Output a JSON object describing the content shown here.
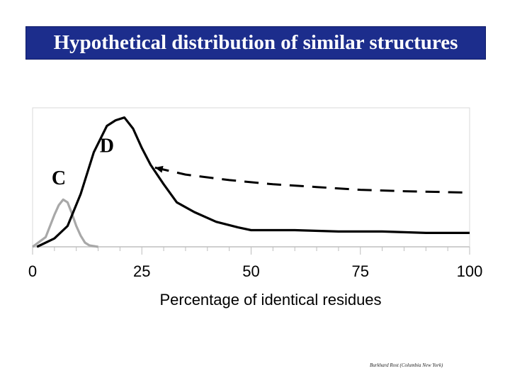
{
  "header": {
    "title": "Hypothetical distribution of similar structures"
  },
  "credit": "Burkhard Rost (Columbia New York)",
  "chart_data": {
    "type": "line",
    "title": "Hypothetical distribution of similar structures",
    "xlabel": "Percentage of identical residues",
    "ylabel": "",
    "xlim": [
      0,
      100
    ],
    "ylim": [
      0,
      1
    ],
    "xticks": [
      0,
      25,
      50,
      75,
      100
    ],
    "grid": false,
    "legend": "none",
    "series": [
      {
        "name": "C",
        "color": "#a8a8a8",
        "dashed": false,
        "x": [
          0,
          3,
          5,
          6,
          7,
          8,
          9,
          10,
          11,
          12,
          13,
          15
        ],
        "y": [
          0,
          0.07,
          0.23,
          0.3,
          0.34,
          0.32,
          0.24,
          0.15,
          0.08,
          0.03,
          0.01,
          0
        ]
      },
      {
        "name": "D",
        "color": "#000000",
        "dashed": false,
        "x": [
          1,
          5,
          8,
          11,
          14,
          17,
          19,
          21,
          23,
          25,
          27,
          30,
          33,
          37,
          42,
          47,
          50,
          60,
          70,
          80,
          90,
          100
        ],
        "y": [
          0,
          0.06,
          0.15,
          0.38,
          0.68,
          0.87,
          0.91,
          0.93,
          0.85,
          0.71,
          0.59,
          0.45,
          0.32,
          0.25,
          0.18,
          0.14,
          0.12,
          0.12,
          0.11,
          0.11,
          0.1,
          0.1
        ]
      },
      {
        "name": "",
        "color": "#000000",
        "dashed": true,
        "x": [
          28,
          35,
          45,
          55,
          65,
          75,
          85,
          100
        ],
        "y": [
          0.57,
          0.52,
          0.48,
          0.45,
          0.43,
          0.41,
          0.4,
          0.39
        ]
      }
    ],
    "annotations": [
      {
        "text": "C",
        "x": 6,
        "y": 0.45
      },
      {
        "text": "D",
        "x": 17,
        "y": 0.68
      }
    ]
  }
}
